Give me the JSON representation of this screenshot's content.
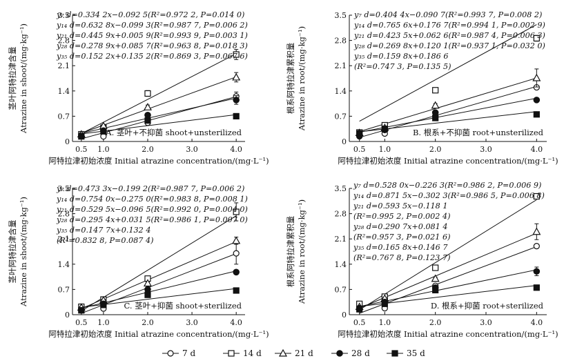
{
  "legend": [
    {
      "label": "7 d",
      "marker": "open-circle"
    },
    {
      "label": "14 d",
      "marker": "open-square"
    },
    {
      "label": "21 d",
      "marker": "open-triangle"
    },
    {
      "label": "28 d",
      "marker": "filled-circle"
    },
    {
      "label": "35 d",
      "marker": "filled-square"
    }
  ],
  "chart_data": [
    {
      "type": "scatter",
      "panel": "A. 茎叶+不抑菌 shoot+unsterilized",
      "xlabel": "阿特拉津初始浓度 Initial atrazine concentration/(mg·L⁻¹)",
      "ylabel": [
        "茎叶阿特拉津含量",
        "Atrazine in shoot/(mg·kg⁻¹)"
      ],
      "xlim": [
        0.3,
        4.2
      ],
      "ylim": [
        0,
        3.5
      ],
      "xticks": [
        "0.5",
        "1.0",
        "2.0",
        "3.0",
        "4.0"
      ],
      "yticks": [
        "0",
        "0.7",
        "1.4",
        "2.1",
        "2.8",
        "3.5"
      ],
      "x": [
        0.5,
        1.0,
        2.0,
        4.0
      ],
      "equations": [
        "y₇ d=0.334 2x−0.092 5(R²=0.972 2, P=0.014 0)",
        "y₁₄ d=0.632 8x−0.099 3(R²=0.987 7, P=0.006 2)",
        "y₂₁ d=0.445 9x+0.005 9(R²=0.993 9, P=0.003 1)",
        "y₂₈ d=0.278 9x+0.085 7(R²=0.963 8, P=0.018 3)",
        "y₃₅ d=0.152 2x+0.135 2(R²=0.869 3, P=0.067 6)"
      ],
      "series": [
        {
          "name": "7 d",
          "marker": "open-circle",
          "values": [
            0.15,
            0.14,
            0.52,
            1.25
          ],
          "err": [
            0,
            0,
            0,
            0.12
          ],
          "line": [
            0.334,
            -0.093
          ]
        },
        {
          "name": "14 d",
          "marker": "open-square",
          "values": [
            0.2,
            0.38,
            1.33,
            2.41
          ],
          "err": [
            0.05,
            0.04,
            0.08,
            0.14
          ],
          "line": [
            0.633,
            -0.099
          ]
        },
        {
          "name": "21 d",
          "marker": "open-triangle",
          "values": [
            0.2,
            0.43,
            0.95,
            1.78
          ],
          "err": [
            0.04,
            0.04,
            0.06,
            0.13
          ],
          "line": [
            0.446,
            0.006
          ]
        },
        {
          "name": "28 d",
          "marker": "filled-circle",
          "values": [
            0.15,
            0.3,
            0.73,
            1.15
          ],
          "err": [
            0,
            0.03,
            0.05,
            0.12
          ],
          "line": [
            0.279,
            0.086
          ]
        },
        {
          "name": "35 d",
          "marker": "filled-square",
          "values": [
            0.14,
            0.28,
            0.58,
            0.7
          ],
          "err": [
            0,
            0,
            0.04,
            0.03
          ],
          "line": [
            0.152,
            0.135
          ]
        }
      ]
    },
    {
      "type": "scatter",
      "panel": "B. 根系+不抑菌 root+unsterilized",
      "xlabel": "阿特拉津初始浓度 Initial atrazine concentration/(mg·L⁻¹)",
      "ylabel": [
        "根系阿特拉津累积量",
        "Atrazine in root/(mg·kg⁻¹)"
      ],
      "xlim": [
        0.3,
        4.2
      ],
      "ylim": [
        0,
        3.5
      ],
      "xticks": [
        "0.5",
        "1.0",
        "2.0",
        "3.0",
        "4.0"
      ],
      "yticks": [
        "0",
        "0.7",
        "1.4",
        "2.1",
        "2.8",
        "3.5"
      ],
      "x": [
        0.5,
        1.0,
        2.0,
        4.0
      ],
      "equations": [
        "y₇ d=0.404 4x−0.090 7(R²=0.993 7, P=0.008 2)",
        "y₁₄ d=0.765 6x+0.176 7(R²=0.994 1, P=0.002 9)",
        "y₂₁ d=0.423 5x+0.062 6(R²=0.987 4, P=0.006 3)",
        "y₂₈ d=0.269 8x+0.120 1(R²=0.937 1, P=0.032 0)",
        "y₃₅ d=0.159 8x+0.186 6",
        "(R²=0.747 3, P=0.135 5)"
      ],
      "series": [
        {
          "name": "7 d",
          "marker": "open-circle",
          "values": [
            0.14,
            0.22,
            0.7,
            1.5
          ],
          "err": [
            0,
            0,
            0,
            0.05
          ],
          "line": [
            0.404,
            -0.091
          ]
        },
        {
          "name": "14 d",
          "marker": "open-square",
          "values": [
            0.25,
            0.45,
            1.42,
            2.86
          ],
          "err": [
            0.04,
            0.04,
            0.04,
            0.08
          ],
          "line": [
            0.766,
            0.177
          ]
        },
        {
          "name": "21 d",
          "marker": "open-triangle",
          "values": [
            0.24,
            0.38,
            1.0,
            1.76
          ],
          "err": [
            0.03,
            0.03,
            0.05,
            0.25
          ],
          "line": [
            0.424,
            0.063
          ]
        },
        {
          "name": "28 d",
          "marker": "filled-circle",
          "values": [
            0.16,
            0.32,
            0.8,
            1.15
          ],
          "err": [
            0,
            0,
            0,
            0
          ],
          "line": [
            0.27,
            0.12
          ]
        },
        {
          "name": "35 d",
          "marker": "filled-square",
          "values": [
            0.22,
            0.35,
            0.65,
            0.75
          ],
          "err": [
            0,
            0,
            0,
            0
          ],
          "line": [
            0.16,
            0.187
          ]
        }
      ]
    },
    {
      "type": "scatter",
      "panel": "C. 茎叶+抑菌 shoot+sterilized",
      "xlabel": "阿特拉津初始浓度 Initial atrazine concentration/(mg·L⁻¹)",
      "ylabel": [
        "茎叶阿特拉津含量",
        "Atrazine in shoot/(mg·kg⁻¹)"
      ],
      "xlim": [
        0.3,
        4.2
      ],
      "ylim": [
        0,
        3.5
      ],
      "xticks": [
        "0.5",
        "1.0",
        "2.0",
        "3.0",
        "4.0"
      ],
      "yticks": [
        "0",
        "0.7",
        "1.4",
        "2.1",
        "2.8",
        "3.5"
      ],
      "x": [
        0.5,
        1.0,
        2.0,
        4.0
      ],
      "equations": [
        "y₇ d=0.473 3x−0.199 2(R²=0.987 7, P=0.006 2)",
        "y₁₄ d=0.754 0x−0.275 0(R²=0.983 8, P=0.008 1)",
        "y₂₁ d=0.529 5x−0.096 5(R²=0.992 0, P=0.004 0)",
        "y₂₈ d=0.295 4x+0.031 5(R²=0.986 1, P=0.007 0)",
        "y₃₅ d=0.147 7x+0.132 4",
        "(R²=0.832 8, P=0.087 4)"
      ],
      "series": [
        {
          "name": "7 d",
          "marker": "open-circle",
          "values": [
            0.15,
            0.17,
            0.6,
            1.7
          ],
          "err": [
            0,
            0,
            0,
            0.3
          ],
          "line": [
            0.473,
            -0.199
          ]
        },
        {
          "name": "14 d",
          "marker": "open-square",
          "values": [
            0.22,
            0.42,
            1.0,
            2.85
          ],
          "err": [
            0.04,
            0.04,
            0.05,
            0.25
          ],
          "line": [
            0.754,
            -0.275
          ]
        },
        {
          "name": "21 d",
          "marker": "open-triangle",
          "values": [
            0.2,
            0.4,
            0.87,
            2.05
          ],
          "err": [
            0.03,
            0.03,
            0.04,
            0.1
          ],
          "line": [
            0.53,
            -0.097
          ]
        },
        {
          "name": "28 d",
          "marker": "filled-circle",
          "values": [
            0.12,
            0.3,
            0.7,
            1.18
          ],
          "err": [
            0,
            0,
            0.05,
            0
          ],
          "line": [
            0.295,
            0.032
          ]
        },
        {
          "name": "35 d",
          "marker": "filled-square",
          "values": [
            0.12,
            0.27,
            0.55,
            0.67
          ],
          "err": [
            0,
            0,
            0.04,
            0
          ],
          "line": [
            0.148,
            0.132
          ]
        }
      ]
    },
    {
      "type": "scatter",
      "panel": "D. 根系+抑菌 root+sterilized",
      "xlabel": "阿特拉津初始浓度 Initial atrazine concentration/(mg·L⁻¹)",
      "ylabel": [
        "根系阿特拉津累积量",
        "Atrazine in root/(mg·kg⁻¹)"
      ],
      "xlim": [
        0.3,
        4.2
      ],
      "ylim": [
        0,
        3.5
      ],
      "xticks": [
        "0.5",
        "1.0",
        "2.0",
        "3.0",
        "4.0"
      ],
      "yticks": [
        "0",
        "0.7",
        "1.4",
        "2.1",
        "2.8",
        "3.5"
      ],
      "x": [
        0.5,
        1.0,
        2.0,
        4.0
      ],
      "equations": [
        "y₇ d=0.528 0x−0.226 3(R²=0.986 2, P=0.006 9)",
        "y₁₄ d=0.871 5x−0.302 3(R²=0.986 5, P=0.006 8)",
        "y₂₁ d=0.593 5x−0.118 1",
        "(R²=0.995 2, P=0.002 4)",
        "y₂₈ d=0.290 7x+0.081 4",
        "(R²=0.957 3, P=0.021 6)",
        "y₃₅ d=0.165 8x+0.146 7",
        "(R²=0.767 8, P=0.123 7)"
      ],
      "series": [
        {
          "name": "7 d",
          "marker": "open-circle",
          "values": [
            0.2,
            0.18,
            0.8,
            1.9
          ],
          "err": [
            0,
            0,
            0,
            0.06
          ],
          "line": [
            0.528,
            -0.226
          ]
        },
        {
          "name": "14 d",
          "marker": "open-square",
          "values": [
            0.3,
            0.5,
            1.3,
            3.28
          ],
          "err": [
            0.04,
            0.04,
            0.05,
            0.06
          ],
          "line": [
            0.872,
            -0.302
          ]
        },
        {
          "name": "21 d",
          "marker": "open-triangle",
          "values": [
            0.22,
            0.45,
            1.0,
            2.3
          ],
          "err": [
            0.03,
            0.03,
            0.04,
            0.22
          ],
          "line": [
            0.594,
            -0.118
          ]
        },
        {
          "name": "28 d",
          "marker": "filled-circle",
          "values": [
            0.18,
            0.35,
            0.75,
            1.2
          ],
          "err": [
            0,
            0,
            0.04,
            0.12
          ],
          "line": [
            0.291,
            0.081
          ]
        },
        {
          "name": "35 d",
          "marker": "filled-square",
          "values": [
            0.15,
            0.3,
            0.68,
            0.75
          ],
          "err": [
            0,
            0,
            0.04,
            0
          ],
          "line": [
            0.166,
            0.147
          ]
        }
      ]
    }
  ]
}
